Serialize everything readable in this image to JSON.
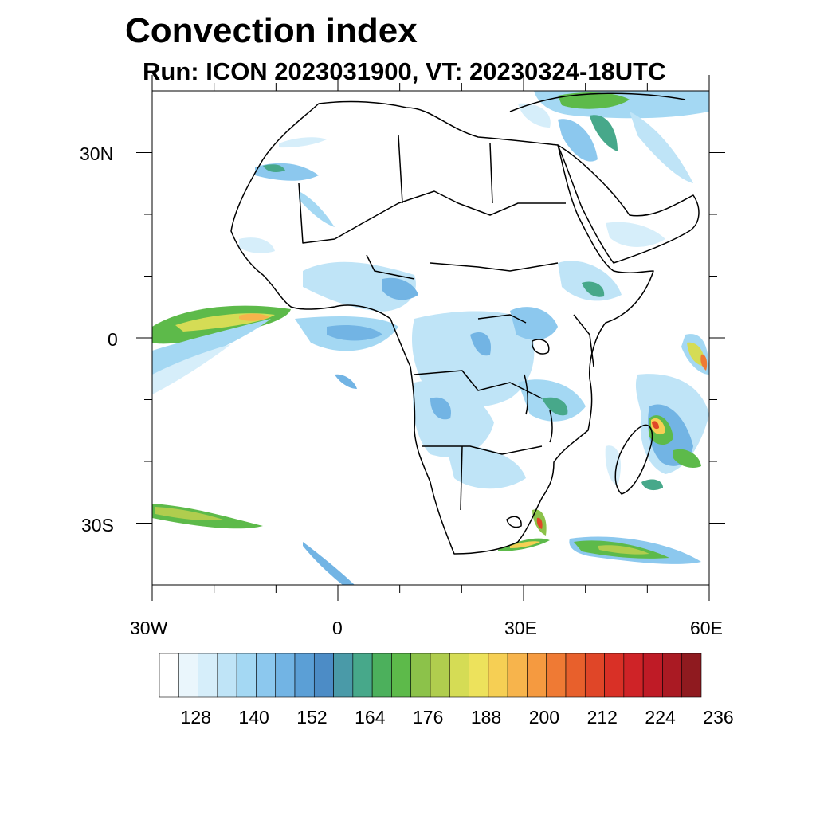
{
  "title": "Convection index",
  "subtitle": "Run: ICON 2023031900,  VT: 20230324-18UTC",
  "axes": {
    "lon_labels": [
      "30W",
      "0",
      "30E",
      "60E"
    ],
    "lat_labels": [
      "30N",
      "0",
      "30S"
    ]
  },
  "colorbar": {
    "tick_labels": [
      "128",
      "140",
      "152",
      "164",
      "176",
      "188",
      "200",
      "212",
      "224",
      "236"
    ],
    "colors": [
      "#ffffff",
      "#eaf6fc",
      "#d6eefa",
      "#bfe4f7",
      "#a4d8f3",
      "#8cc8ee",
      "#72b4e4",
      "#5b9fd6",
      "#4c8cc6",
      "#4a9aa8",
      "#47a88a",
      "#4cb05c",
      "#5dba4a",
      "#8cc24a",
      "#b0cd4e",
      "#d5dc55",
      "#ede25c",
      "#f6cf54",
      "#f7b44c",
      "#f59a40",
      "#ef7a34",
      "#e8602c",
      "#e04628",
      "#d93026",
      "#cf2327",
      "#bf1b26",
      "#aa1a23",
      "#8f1a1f"
    ]
  },
  "map_extent": {
    "lon_min": -30,
    "lon_max": 60,
    "lat_min": -40,
    "lat_max": 40
  },
  "legend_levels": [
    124,
    128,
    132,
    136,
    140,
    144,
    148,
    152,
    156,
    160,
    164,
    168,
    172,
    176,
    180,
    184,
    188,
    192,
    196,
    200,
    204,
    208,
    212,
    216,
    220,
    224,
    228,
    232,
    236
  ]
}
